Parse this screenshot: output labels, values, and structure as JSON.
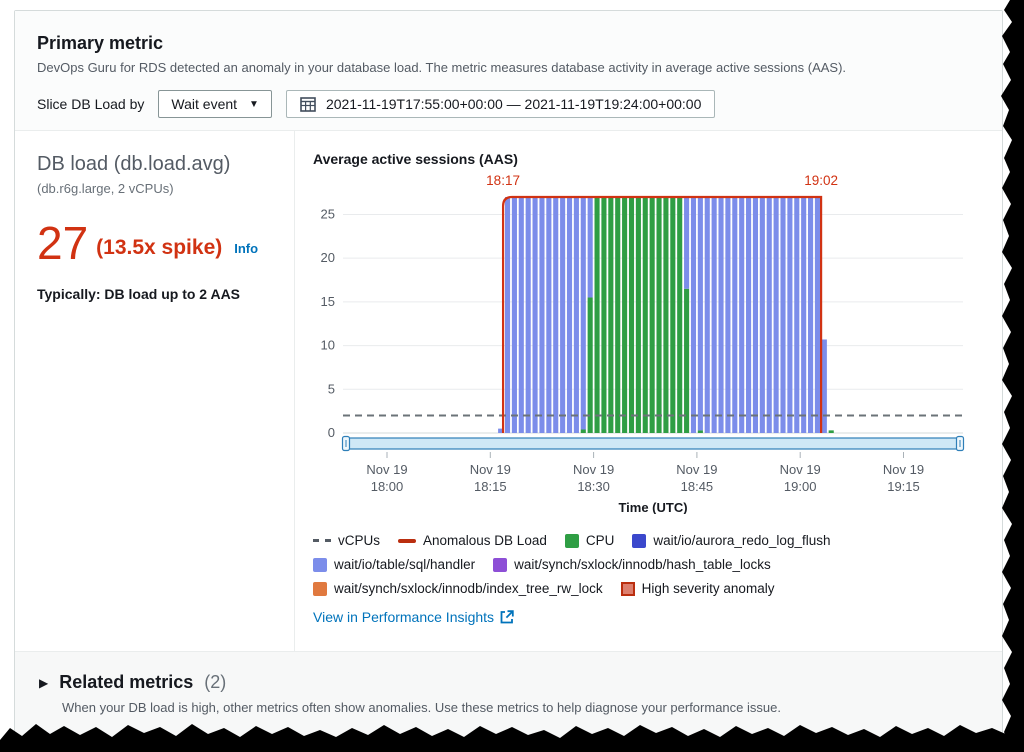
{
  "header": {
    "title": "Primary metric",
    "description": "DevOps Guru for RDS detected an anomaly in your database load. The metric measures database activity in average active sessions (AAS).",
    "slice_label": "Slice DB Load by",
    "slice_value": "Wait event",
    "date_range": "2021-11-19T17:55:00+00:00 — 2021-11-19T19:24:00+00:00"
  },
  "left_panel": {
    "title": "DB load (db.load.avg)",
    "subtitle": "(db.r6g.large, 2 vCPUs)",
    "value": "27",
    "spike": "(13.5x spike)",
    "info_label": "Info",
    "typical": "Typically: DB load up to 2 AAS"
  },
  "chart_data": {
    "type": "bar",
    "stacked": true,
    "title": "Average active sessions (AAS)",
    "xlabel": "Time (UTC)",
    "ylabel": "Average active sessions (AAS)",
    "ylim": [
      0,
      27
    ],
    "yticks": [
      0,
      5,
      10,
      15,
      20,
      25
    ],
    "xticks": [
      {
        "date": "Nov 19",
        "time": "18:00"
      },
      {
        "date": "Nov 19",
        "time": "18:15"
      },
      {
        "date": "Nov 19",
        "time": "18:30"
      },
      {
        "date": "Nov 19",
        "time": "18:45"
      },
      {
        "date": "Nov 19",
        "time": "19:00"
      },
      {
        "date": "Nov 19",
        "time": "19:15"
      }
    ],
    "grid": true,
    "vcpus_line": 2,
    "anomaly": {
      "start_label": "18:17",
      "end_label": "19:02",
      "severity": "High"
    },
    "bar_columns": [
      "time",
      "cpu",
      "wait_io_table_sql_handler"
    ],
    "bars": [
      [
        "18:16",
        0,
        0.5
      ],
      [
        "18:17",
        0,
        27
      ],
      [
        "18:18",
        0,
        27
      ],
      [
        "18:19",
        0,
        27
      ],
      [
        "18:20",
        0,
        27
      ],
      [
        "18:21",
        0,
        27
      ],
      [
        "18:22",
        0,
        27
      ],
      [
        "18:23",
        0,
        27
      ],
      [
        "18:24",
        0,
        27
      ],
      [
        "18:25",
        0,
        27
      ],
      [
        "18:26",
        0,
        27
      ],
      [
        "18:27",
        0,
        27
      ],
      [
        "18:28",
        0.4,
        26.6
      ],
      [
        "18:29",
        15.5,
        11.5
      ],
      [
        "18:30",
        27,
        0
      ],
      [
        "18:31",
        27,
        0
      ],
      [
        "18:32",
        27,
        0
      ],
      [
        "18:33",
        27,
        0
      ],
      [
        "18:34",
        27,
        0
      ],
      [
        "18:35",
        27,
        0
      ],
      [
        "18:36",
        27,
        0
      ],
      [
        "18:37",
        27,
        0
      ],
      [
        "18:38",
        27,
        0
      ],
      [
        "18:39",
        27,
        0
      ],
      [
        "18:40",
        27,
        0
      ],
      [
        "18:41",
        27,
        0
      ],
      [
        "18:42",
        27,
        0
      ],
      [
        "18:43",
        16.5,
        10.5
      ],
      [
        "18:44",
        0,
        27
      ],
      [
        "18:45",
        0.3,
        26.7
      ],
      [
        "18:46",
        0,
        27
      ],
      [
        "18:47",
        0,
        27
      ],
      [
        "18:48",
        0,
        27
      ],
      [
        "18:49",
        0,
        27
      ],
      [
        "18:50",
        0,
        27
      ],
      [
        "18:51",
        0,
        27
      ],
      [
        "18:52",
        0,
        27
      ],
      [
        "18:53",
        0,
        27
      ],
      [
        "18:54",
        0,
        27
      ],
      [
        "18:55",
        0,
        27
      ],
      [
        "18:56",
        0,
        27
      ],
      [
        "18:57",
        0,
        27
      ],
      [
        "18:58",
        0,
        27
      ],
      [
        "18:59",
        0,
        27
      ],
      [
        "19:00",
        0,
        27
      ],
      [
        "19:01",
        0,
        27
      ],
      [
        "19:02",
        0,
        27
      ],
      [
        "19:03",
        0,
        10.7
      ],
      [
        "19:04",
        0.3,
        0
      ]
    ],
    "colors": {
      "cpu": "#2f9e44",
      "wait_io_table_sql_handler": "#7c8dea",
      "anomaly_outline": "#d13212",
      "vcpus_dash": "#6b7378",
      "grid": "#e9ebed",
      "axis_text": "#545b64",
      "slider_track": "#cfe8f6",
      "slider_border": "#2e7fb8"
    }
  },
  "legend": {
    "items": [
      {
        "label": "vCPUs",
        "color": "#545b64",
        "type": "dashed-line"
      },
      {
        "label": "Anomalous DB Load",
        "color": "#ba2e0f",
        "type": "line"
      },
      {
        "label": "CPU",
        "color": "#2f9e44",
        "type": "square"
      },
      {
        "label": "wait/io/aurora_redo_log_flush",
        "color": "#3b48cc",
        "type": "square"
      },
      {
        "label": "wait/io/table/sql/handler",
        "color": "#7c8dea",
        "type": "square"
      },
      {
        "label": "wait/synch/sxlock/innodb/hash_table_locks",
        "color": "#8d4fd6",
        "type": "square"
      },
      {
        "label": "wait/synch/sxlock/innodb/index_tree_rw_lock",
        "color": "#e0793f",
        "type": "square"
      },
      {
        "label": "High severity anomaly",
        "color": "#dd7f6e",
        "type": "bordered-square"
      }
    ],
    "link_label": "View in Performance Insights"
  },
  "related": {
    "title": "Related metrics",
    "count": "(2)",
    "description": "When your DB load is high, other metrics often show anomalies. Use these metrics to help diagnose your performance issue."
  }
}
